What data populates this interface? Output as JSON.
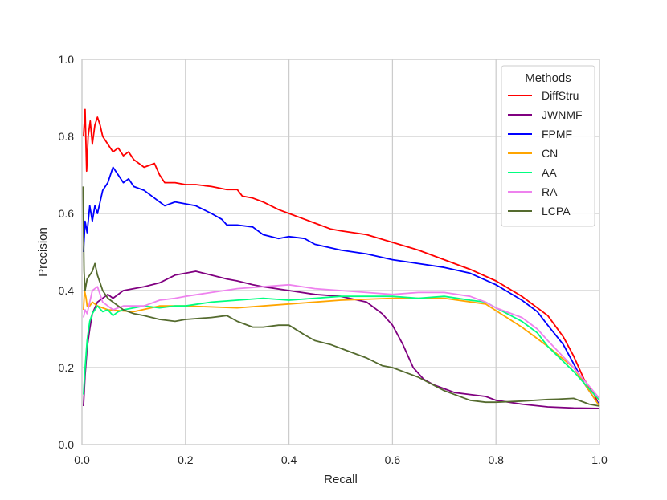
{
  "chart_data": {
    "type": "line",
    "xlabel": "Recall",
    "ylabel": "Precision",
    "xlim": [
      0.0,
      1.0
    ],
    "ylim": [
      0.0,
      1.0
    ],
    "xticks": [
      "0.0",
      "0.2",
      "0.4",
      "0.6",
      "0.8",
      "1.0"
    ],
    "yticks": [
      "0.0",
      "0.2",
      "0.4",
      "0.6",
      "0.8",
      "1.0"
    ],
    "grid": true,
    "legend": {
      "title": "Methods",
      "placement": "top-right"
    },
    "series": [
      {
        "name": "DiffStru",
        "color": "#ff0000",
        "x": [
          0.003,
          0.006,
          0.009,
          0.012,
          0.016,
          0.02,
          0.025,
          0.03,
          0.035,
          0.04,
          0.05,
          0.06,
          0.07,
          0.08,
          0.09,
          0.1,
          0.12,
          0.14,
          0.15,
          0.16,
          0.18,
          0.2,
          0.22,
          0.25,
          0.28,
          0.3,
          0.31,
          0.33,
          0.35,
          0.38,
          0.4,
          0.42,
          0.45,
          0.48,
          0.5,
          0.55,
          0.6,
          0.65,
          0.7,
          0.75,
          0.8,
          0.85,
          0.9,
          0.93,
          0.95,
          0.97,
          0.99,
          1.0
        ],
        "y": [
          0.8,
          0.87,
          0.71,
          0.8,
          0.84,
          0.78,
          0.83,
          0.85,
          0.83,
          0.8,
          0.78,
          0.76,
          0.77,
          0.75,
          0.76,
          0.74,
          0.72,
          0.73,
          0.7,
          0.68,
          0.68,
          0.675,
          0.675,
          0.67,
          0.662,
          0.662,
          0.645,
          0.64,
          0.63,
          0.61,
          0.6,
          0.59,
          0.575,
          0.56,
          0.555,
          0.545,
          0.525,
          0.505,
          0.48,
          0.455,
          0.425,
          0.385,
          0.335,
          0.28,
          0.23,
          0.17,
          0.13,
          0.1
        ]
      },
      {
        "name": "JWNMF",
        "color": "#800080",
        "x": [
          0.003,
          0.006,
          0.01,
          0.015,
          0.02,
          0.03,
          0.04,
          0.05,
          0.06,
          0.08,
          0.1,
          0.12,
          0.15,
          0.18,
          0.2,
          0.22,
          0.25,
          0.28,
          0.3,
          0.33,
          0.35,
          0.4,
          0.45,
          0.5,
          0.55,
          0.58,
          0.6,
          0.62,
          0.64,
          0.66,
          0.68,
          0.7,
          0.72,
          0.75,
          0.78,
          0.8,
          0.85,
          0.9,
          0.95,
          1.0
        ],
        "y": [
          0.1,
          0.18,
          0.25,
          0.3,
          0.34,
          0.37,
          0.38,
          0.39,
          0.38,
          0.4,
          0.405,
          0.41,
          0.42,
          0.44,
          0.445,
          0.45,
          0.44,
          0.43,
          0.425,
          0.415,
          0.41,
          0.4,
          0.39,
          0.385,
          0.37,
          0.34,
          0.31,
          0.26,
          0.2,
          0.17,
          0.155,
          0.145,
          0.135,
          0.13,
          0.125,
          0.115,
          0.105,
          0.098,
          0.095,
          0.094
        ]
      },
      {
        "name": "FPMF",
        "color": "#0000ff",
        "x": [
          0.003,
          0.006,
          0.01,
          0.015,
          0.02,
          0.025,
          0.03,
          0.04,
          0.05,
          0.06,
          0.07,
          0.08,
          0.09,
          0.1,
          0.12,
          0.14,
          0.16,
          0.18,
          0.2,
          0.22,
          0.25,
          0.27,
          0.28,
          0.3,
          0.33,
          0.35,
          0.38,
          0.4,
          0.43,
          0.45,
          0.5,
          0.55,
          0.6,
          0.65,
          0.7,
          0.75,
          0.8,
          0.85,
          0.88,
          0.9,
          0.93,
          0.95,
          0.97,
          0.99,
          1.0
        ],
        "y": [
          0.5,
          0.58,
          0.55,
          0.62,
          0.58,
          0.62,
          0.6,
          0.66,
          0.68,
          0.72,
          0.7,
          0.68,
          0.69,
          0.67,
          0.66,
          0.64,
          0.62,
          0.63,
          0.625,
          0.62,
          0.6,
          0.585,
          0.57,
          0.57,
          0.565,
          0.545,
          0.535,
          0.54,
          0.535,
          0.52,
          0.505,
          0.495,
          0.48,
          0.47,
          0.46,
          0.445,
          0.415,
          0.375,
          0.345,
          0.31,
          0.26,
          0.21,
          0.16,
          0.12,
          0.105
        ]
      },
      {
        "name": "CN",
        "color": "#ffa500",
        "x": [
          0.003,
          0.005,
          0.008,
          0.01,
          0.015,
          0.02,
          0.03,
          0.04,
          0.05,
          0.1,
          0.15,
          0.2,
          0.3,
          0.4,
          0.5,
          0.6,
          0.7,
          0.78,
          0.85,
          0.9,
          0.95,
          1.0
        ],
        "y": [
          0.35,
          0.4,
          0.38,
          0.36,
          0.36,
          0.37,
          0.36,
          0.355,
          0.35,
          0.345,
          0.36,
          0.36,
          0.355,
          0.365,
          0.375,
          0.38,
          0.38,
          0.365,
          0.305,
          0.255,
          0.2,
          0.1
        ]
      },
      {
        "name": "AA",
        "color": "#00ff7f",
        "x": [
          0.003,
          0.006,
          0.01,
          0.015,
          0.02,
          0.03,
          0.04,
          0.05,
          0.06,
          0.07,
          0.08,
          0.1,
          0.12,
          0.15,
          0.18,
          0.2,
          0.25,
          0.3,
          0.35,
          0.4,
          0.45,
          0.5,
          0.55,
          0.6,
          0.65,
          0.7,
          0.75,
          0.78,
          0.8,
          0.85,
          0.88,
          0.9,
          0.95,
          1.0
        ],
        "y": [
          0.13,
          0.2,
          0.27,
          0.32,
          0.34,
          0.36,
          0.345,
          0.35,
          0.335,
          0.345,
          0.35,
          0.355,
          0.36,
          0.355,
          0.36,
          0.36,
          0.37,
          0.375,
          0.38,
          0.375,
          0.38,
          0.385,
          0.385,
          0.385,
          0.38,
          0.385,
          0.375,
          0.37,
          0.355,
          0.32,
          0.29,
          0.255,
          0.19,
          0.115
        ]
      },
      {
        "name": "RA",
        "color": "#ee82ee",
        "x": [
          0.003,
          0.006,
          0.01,
          0.015,
          0.02,
          0.03,
          0.04,
          0.05,
          0.06,
          0.08,
          0.1,
          0.12,
          0.15,
          0.18,
          0.2,
          0.25,
          0.3,
          0.35,
          0.4,
          0.45,
          0.5,
          0.55,
          0.6,
          0.65,
          0.7,
          0.75,
          0.78,
          0.8,
          0.85,
          0.88,
          0.9,
          0.95,
          1.0
        ],
        "y": [
          0.33,
          0.35,
          0.34,
          0.37,
          0.4,
          0.41,
          0.37,
          0.36,
          0.35,
          0.36,
          0.36,
          0.36,
          0.375,
          0.38,
          0.385,
          0.395,
          0.405,
          0.41,
          0.415,
          0.405,
          0.4,
          0.395,
          0.39,
          0.395,
          0.395,
          0.385,
          0.37,
          0.355,
          0.33,
          0.3,
          0.27,
          0.2,
          0.12
        ]
      },
      {
        "name": "LCPA",
        "color": "#556b2f",
        "x": [
          0.002,
          0.004,
          0.006,
          0.01,
          0.015,
          0.02,
          0.025,
          0.03,
          0.04,
          0.05,
          0.06,
          0.08,
          0.1,
          0.12,
          0.15,
          0.18,
          0.2,
          0.25,
          0.28,
          0.3,
          0.33,
          0.35,
          0.38,
          0.4,
          0.43,
          0.45,
          0.48,
          0.5,
          0.55,
          0.58,
          0.6,
          0.65,
          0.7,
          0.75,
          0.78,
          0.8,
          0.85,
          0.9,
          0.92,
          0.95,
          0.98,
          1.0
        ],
        "y": [
          0.67,
          0.45,
          0.4,
          0.43,
          0.44,
          0.45,
          0.47,
          0.44,
          0.4,
          0.38,
          0.37,
          0.35,
          0.34,
          0.335,
          0.325,
          0.32,
          0.325,
          0.33,
          0.335,
          0.32,
          0.305,
          0.305,
          0.31,
          0.31,
          0.285,
          0.27,
          0.26,
          0.25,
          0.225,
          0.205,
          0.2,
          0.175,
          0.14,
          0.115,
          0.11,
          0.11,
          0.113,
          0.117,
          0.118,
          0.12,
          0.105,
          0.1
        ]
      }
    ]
  }
}
